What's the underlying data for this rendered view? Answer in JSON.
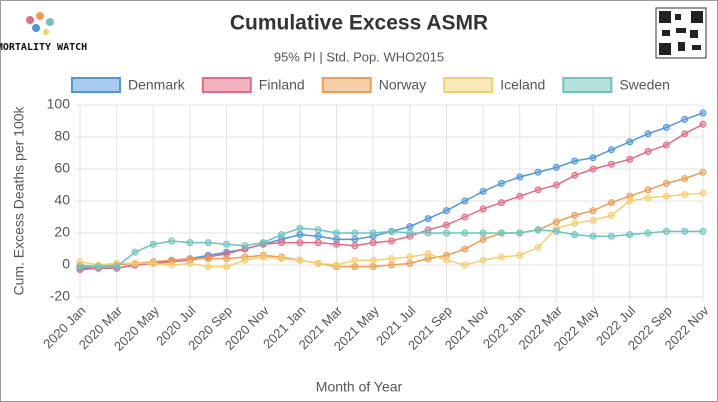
{
  "logo": "MORTALITY WATCH",
  "chart_data": {
    "type": "line",
    "title": "Cumulative Excess ASMR",
    "subtitle": "95% PI | Std. Pop. WHO2015",
    "xlabel": "Month of Year",
    "ylabel": "Cum. Excess Deaths per 100k",
    "categories": [
      "2020 Jan",
      null,
      "2020 Mar",
      null,
      "2020 May",
      null,
      "2020 Jul",
      null,
      "2020 Sep",
      null,
      "2020 Nov",
      null,
      "2021 Jan",
      null,
      "2021 Mar",
      null,
      "2021 May",
      null,
      "2021 Jul",
      null,
      "2021 Sep",
      null,
      "2021 Nov",
      null,
      "2022 Jan",
      null,
      "2022 Mar",
      null,
      "2022 May",
      null,
      "2022 Jul",
      null,
      "2022 Sep",
      null,
      "2022 Nov"
    ],
    "ylim": [
      -20,
      100
    ],
    "yticks": [
      -20,
      0,
      20,
      40,
      60,
      80,
      100
    ],
    "grid": true,
    "legend": "top",
    "series": [
      {
        "name": "Denmark",
        "color": "#4f96db",
        "values": [
          -2,
          -2,
          -2,
          0,
          1,
          3,
          4,
          6,
          8,
          10,
          13,
          16,
          19,
          18,
          16,
          16,
          18,
          21,
          24,
          29,
          34,
          40,
          46,
          51,
          55,
          58,
          61,
          65,
          67,
          72,
          77,
          82,
          86,
          91,
          95
        ]
      },
      {
        "name": "Finland",
        "color": "#e46b83",
        "values": [
          -3,
          -2,
          -2,
          0,
          1,
          2,
          3,
          5,
          7,
          10,
          13,
          14,
          14,
          14,
          13,
          12,
          14,
          15,
          18,
          22,
          25,
          30,
          35,
          39,
          43,
          47,
          50,
          56,
          60,
          63,
          66,
          71,
          75,
          82,
          88
        ]
      },
      {
        "name": "Norway",
        "color": "#ee9d55",
        "values": [
          0,
          -1,
          0,
          1,
          2,
          3,
          4,
          4,
          4,
          5,
          6,
          5,
          3,
          1,
          -1,
          -1,
          -1,
          0,
          1,
          4,
          6,
          10,
          16,
          20,
          20,
          22,
          27,
          31,
          34,
          39,
          43,
          47,
          51,
          54,
          58
        ]
      },
      {
        "name": "Iceland",
        "color": "#f3cf70",
        "values": [
          2,
          0,
          1,
          1,
          1,
          0,
          1,
          -1,
          -1,
          3,
          5,
          4,
          3,
          1,
          0,
          3,
          3,
          4,
          5,
          7,
          3,
          0,
          3,
          5,
          6,
          11,
          23,
          26,
          28,
          31,
          40,
          42,
          43,
          44,
          45
        ]
      },
      {
        "name": "Sweden",
        "color": "#6cc4bd",
        "values": [
          -1,
          -1,
          -1,
          8,
          13,
          15,
          14,
          14,
          13,
          12,
          14,
          19,
          23,
          22,
          20,
          20,
          20,
          21,
          20,
          20,
          20,
          20,
          20,
          20,
          20,
          22,
          21,
          19,
          18,
          18,
          19,
          20,
          21,
          21,
          21
        ]
      }
    ]
  }
}
